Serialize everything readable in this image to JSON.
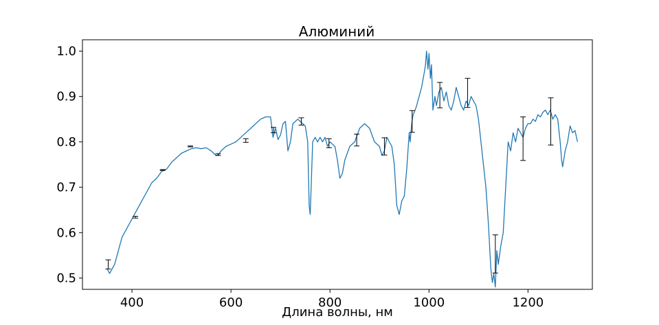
{
  "chart_data": {
    "type": "line",
    "title": "Алюминий",
    "xlabel": "Длина волны, нм",
    "ylabel": "",
    "xlim": [
      300,
      1330
    ],
    "ylim": [
      0.475,
      1.025
    ],
    "grid": false,
    "x_ticks": [
      400,
      600,
      800,
      1000,
      1200
    ],
    "y_ticks": [
      0.5,
      0.6,
      0.7,
      0.8,
      0.9,
      1.0
    ],
    "x_tick_labels": [
      "400",
      "600",
      "800",
      "1000",
      "1200"
    ],
    "y_tick_labels": [
      "0.5",
      "0.6",
      "0.7",
      "0.8",
      "0.9",
      "1.0"
    ],
    "series": [
      {
        "color": "#1f77b4",
        "x": [
          350,
          355,
          360,
          365,
          370,
          375,
          380,
          385,
          390,
          395,
          400,
          405,
          410,
          415,
          420,
          430,
          440,
          450,
          460,
          470,
          480,
          490,
          500,
          510,
          520,
          530,
          540,
          550,
          560,
          565,
          570,
          575,
          580,
          590,
          600,
          610,
          620,
          630,
          640,
          650,
          660,
          670,
          680,
          685,
          690,
          695,
          700,
          705,
          710,
          715,
          720,
          725,
          730,
          735,
          740,
          745,
          750,
          755,
          758,
          760,
          762,
          765,
          770,
          775,
          780,
          785,
          790,
          795,
          800,
          805,
          810,
          815,
          820,
          825,
          830,
          840,
          850,
          860,
          870,
          880,
          890,
          900,
          905,
          910,
          915,
          920,
          925,
          930,
          935,
          940,
          945,
          950,
          955,
          960,
          962,
          965,
          968,
          972,
          975,
          980,
          985,
          990,
          993,
          995,
          998,
          1000,
          1003,
          1005,
          1008,
          1012,
          1015,
          1020,
          1025,
          1030,
          1035,
          1040,
          1045,
          1050,
          1055,
          1060,
          1065,
          1070,
          1075,
          1080,
          1085,
          1090,
          1095,
          1100,
          1105,
          1110,
          1115,
          1120,
          1125,
          1128,
          1131,
          1134,
          1137,
          1140,
          1145,
          1150,
          1155,
          1160,
          1165,
          1170,
          1175,
          1180,
          1185,
          1190,
          1195,
          1200,
          1205,
          1210,
          1215,
          1220,
          1225,
          1230,
          1235,
          1240,
          1245,
          1250,
          1255,
          1260,
          1265,
          1268,
          1270,
          1275,
          1280,
          1285,
          1290,
          1295,
          1300
        ],
        "y": [
          0.52,
          0.51,
          0.52,
          0.53,
          0.55,
          0.57,
          0.59,
          0.6,
          0.61,
          0.62,
          0.63,
          0.64,
          0.65,
          0.66,
          0.67,
          0.69,
          0.71,
          0.72,
          0.735,
          0.74,
          0.755,
          0.765,
          0.775,
          0.78,
          0.785,
          0.787,
          0.785,
          0.787,
          0.78,
          0.775,
          0.77,
          0.772,
          0.78,
          0.79,
          0.795,
          0.8,
          0.81,
          0.82,
          0.83,
          0.84,
          0.85,
          0.855,
          0.855,
          0.81,
          0.83,
          0.805,
          0.815,
          0.84,
          0.845,
          0.78,
          0.8,
          0.84,
          0.845,
          0.85,
          0.845,
          0.84,
          0.835,
          0.8,
          0.66,
          0.64,
          0.7,
          0.8,
          0.81,
          0.8,
          0.81,
          0.8,
          0.81,
          0.79,
          0.8,
          0.795,
          0.79,
          0.76,
          0.72,
          0.73,
          0.76,
          0.79,
          0.8,
          0.83,
          0.84,
          0.83,
          0.8,
          0.79,
          0.77,
          0.78,
          0.81,
          0.8,
          0.79,
          0.75,
          0.66,
          0.64,
          0.67,
          0.68,
          0.74,
          0.82,
          0.8,
          0.84,
          0.86,
          0.87,
          0.88,
          0.9,
          0.92,
          0.95,
          0.97,
          1.0,
          0.96,
          0.995,
          0.94,
          0.97,
          0.87,
          0.9,
          0.88,
          0.91,
          0.92,
          0.89,
          0.91,
          0.88,
          0.87,
          0.89,
          0.92,
          0.9,
          0.88,
          0.87,
          0.89,
          0.88,
          0.9,
          0.89,
          0.88,
          0.85,
          0.8,
          0.75,
          0.7,
          0.62,
          0.52,
          0.49,
          0.51,
          0.48,
          0.56,
          0.53,
          0.57,
          0.6,
          0.7,
          0.8,
          0.78,
          0.82,
          0.8,
          0.83,
          0.82,
          0.81,
          0.83,
          0.84,
          0.84,
          0.85,
          0.845,
          0.86,
          0.855,
          0.865,
          0.87,
          0.86,
          0.87,
          0.85,
          0.86,
          0.85,
          0.8,
          0.76,
          0.745,
          0.78,
          0.8,
          0.835,
          0.82,
          0.825,
          0.8
        ]
      }
    ],
    "error_bars": [
      {
        "x": 352,
        "y": 0.53,
        "yerr": 0.01
      },
      {
        "x": 407,
        "y": 0.634,
        "yerr": 0.002
      },
      {
        "x": 462,
        "y": 0.738,
        "yerr": 0.001
      },
      {
        "x": 518,
        "y": 0.79,
        "yerr": 0.001
      },
      {
        "x": 574,
        "y": 0.772,
        "yerr": 0.002
      },
      {
        "x": 630,
        "y": 0.803,
        "yerr": 0.004
      },
      {
        "x": 686,
        "y": 0.826,
        "yerr": 0.006
      },
      {
        "x": 742,
        "y": 0.845,
        "yerr": 0.008
      },
      {
        "x": 798,
        "y": 0.797,
        "yerr": 0.01
      },
      {
        "x": 854,
        "y": 0.804,
        "yerr": 0.013
      },
      {
        "x": 910,
        "y": 0.79,
        "yerr": 0.019
      },
      {
        "x": 966,
        "y": 0.845,
        "yerr": 0.024
      },
      {
        "x": 1022,
        "y": 0.903,
        "yerr": 0.028
      },
      {
        "x": 1078,
        "y": 0.908,
        "yerr": 0.032
      },
      {
        "x": 1134,
        "y": 0.553,
        "yerr": 0.042
      },
      {
        "x": 1190,
        "y": 0.807,
        "yerr": 0.048
      },
      {
        "x": 1246,
        "y": 0.845,
        "yerr": 0.052
      }
    ]
  }
}
